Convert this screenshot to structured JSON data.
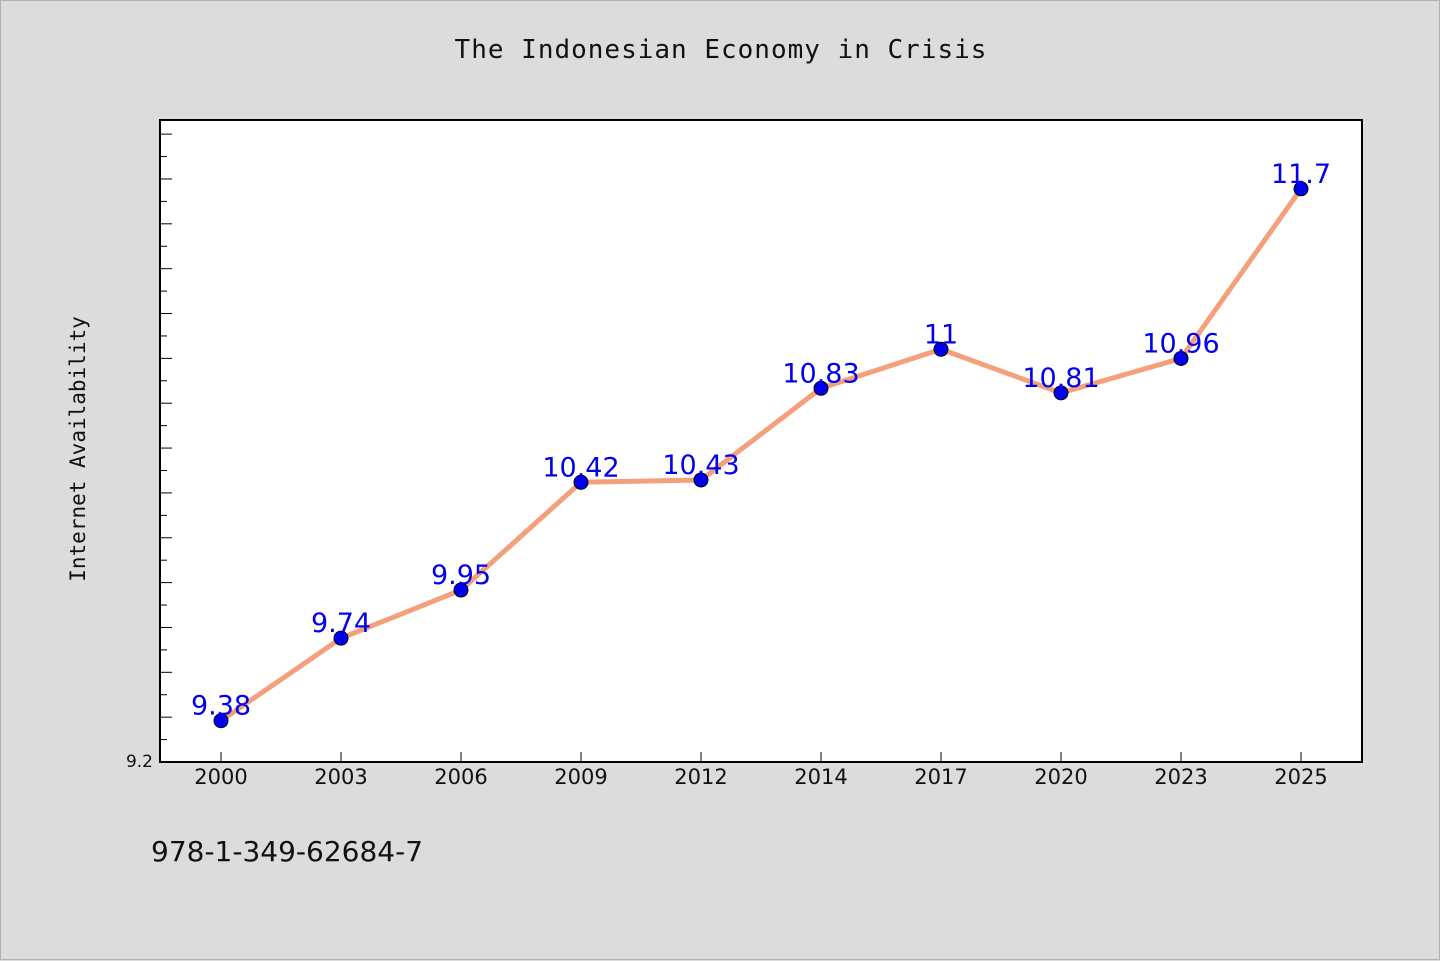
{
  "chart_data": {
    "type": "line",
    "title": "The Indonesian Economy in Crisis",
    "xlabel": "",
    "ylabel": "Internet Availability",
    "categories": [
      "2000",
      "2003",
      "2006",
      "2009",
      "2012",
      "2014",
      "2017",
      "2020",
      "2023",
      "2025"
    ],
    "series": [
      {
        "values": [
          9.38,
          9.74,
          9.95,
          10.42,
          10.43,
          10.83,
          11,
          10.81,
          10.96,
          11.7
        ],
        "labels": [
          "9.38",
          "9.74",
          "9.95",
          "10.42",
          "10.43",
          "10.83",
          "11",
          "10.81",
          "10.96",
          "11.7"
        ],
        "line_color": "#f4a07c",
        "marker_color": "#0000ee",
        "label_color": "#0000ee"
      }
    ],
    "ylim": [
      9.2,
      12.0
    ],
    "y_tick_labels": [
      "9.2"
    ],
    "grid": false,
    "legend": "none"
  },
  "footer": {
    "text": "978-1-349-62684-7"
  }
}
